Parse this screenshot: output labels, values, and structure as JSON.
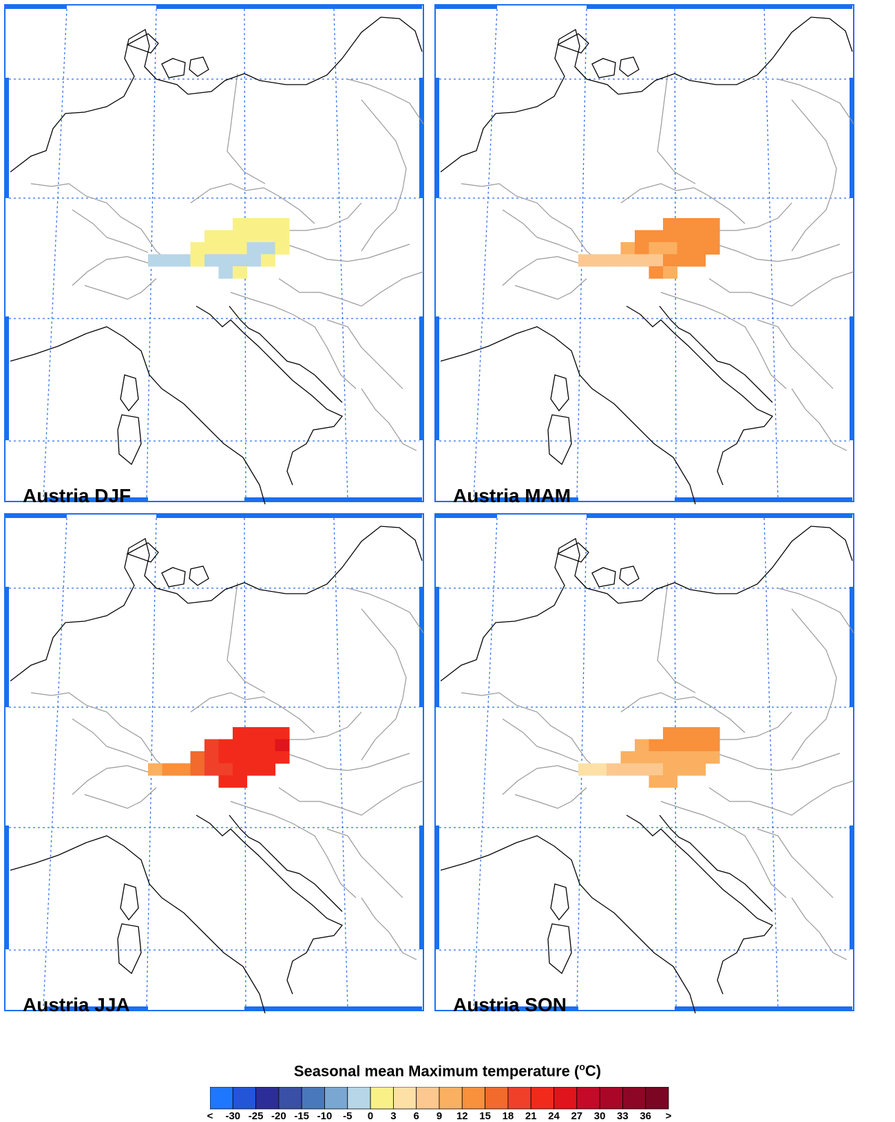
{
  "panels": [
    {
      "label": "Austria DJF"
    },
    {
      "label": "Austria MAM"
    },
    {
      "label": "Austria JJA"
    },
    {
      "label": "Austria SON"
    }
  ],
  "legend": {
    "title": "Seasonal mean Maximum temperature (",
    "title_unit": "°C)",
    "colors": [
      "#1e78ff",
      "#2255d8",
      "#2d2d9a",
      "#3a50a6",
      "#4a78bc",
      "#7aa6d2",
      "#b7d6e8",
      "#f9f188",
      "#fce0a6",
      "#fcc890",
      "#fab060",
      "#f8903c",
      "#f26a2c",
      "#f0402a",
      "#f22a1c",
      "#e0141c",
      "#c40a28",
      "#aa0628",
      "#8e0626",
      "#7a0624"
    ],
    "ticks": [
      "<",
      "-30",
      "-25",
      "-20",
      "-15",
      "-10",
      "-5",
      "0",
      "3",
      "6",
      "9",
      "12",
      "15",
      "18",
      "21",
      "24",
      "27",
      "30",
      "33",
      "36",
      ">"
    ]
  }
}
